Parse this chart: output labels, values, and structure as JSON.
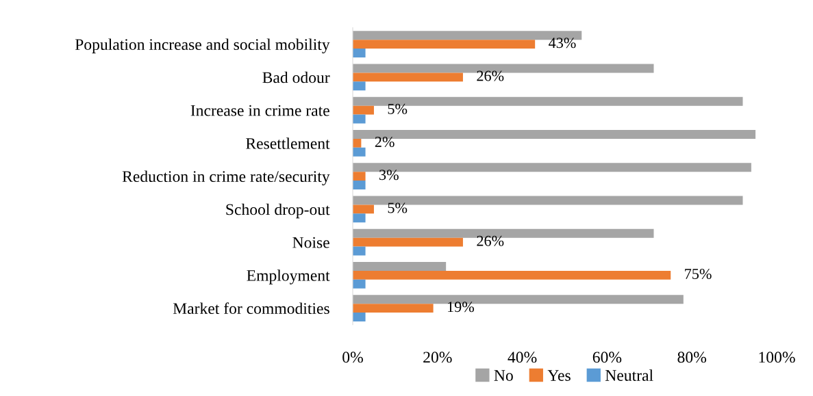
{
  "chart_data": {
    "type": "bar",
    "orientation": "horizontal",
    "categories": [
      "Population increase and social mobility",
      "Bad odour",
      "Increase in crime rate",
      "Resettlement",
      "Reduction in crime rate/security",
      "School drop-out",
      "Noise",
      "Employment",
      "Market for commodities"
    ],
    "series": [
      {
        "name": "No",
        "color": "#a5a5a5",
        "values": [
          54,
          71,
          92,
          95,
          94,
          92,
          71,
          22,
          78
        ]
      },
      {
        "name": "Yes",
        "color": "#ed7d31",
        "values": [
          43,
          26,
          5,
          2,
          3,
          5,
          26,
          75,
          19
        ],
        "value_labels": [
          "43%",
          "26%",
          "5%",
          "2%",
          "3%",
          "5%",
          "26%",
          "75%",
          "19%"
        ]
      },
      {
        "name": "Neutral",
        "color": "#5b9bd5",
        "values": [
          3,
          3,
          3,
          3,
          3,
          3,
          3,
          3,
          3
        ]
      }
    ],
    "xlim": [
      0,
      100
    ],
    "xticks": [
      {
        "value": 0,
        "label": "0%"
      },
      {
        "value": 20,
        "label": "20%"
      },
      {
        "value": 40,
        "label": "40%"
      },
      {
        "value": 60,
        "label": "60%"
      },
      {
        "value": 80,
        "label": "80%"
      },
      {
        "value": 100,
        "label": "100%"
      }
    ],
    "grid": false,
    "legend": "bottom"
  }
}
